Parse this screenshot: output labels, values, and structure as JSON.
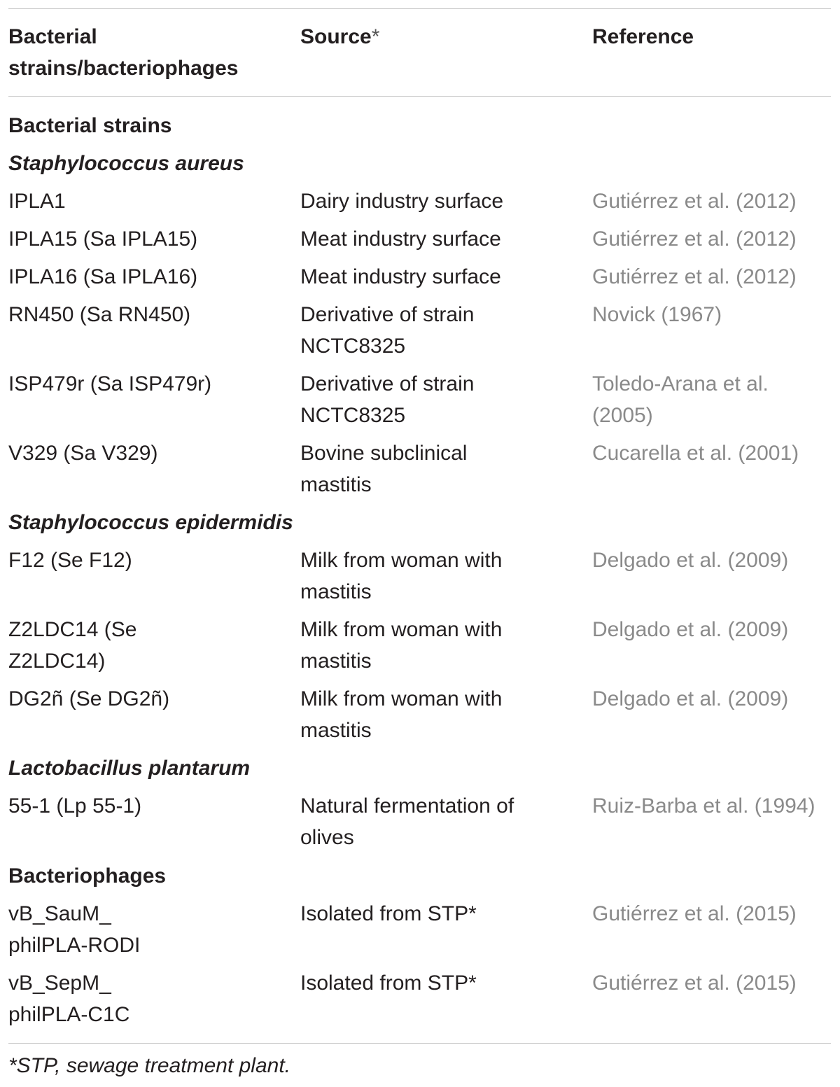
{
  "table": {
    "headers": {
      "col1_line1": "Bacterial",
      "col1_line2": "strains/bacteriophages",
      "col2": "Source",
      "col2_mark": "*",
      "col3": "Reference"
    },
    "sections": {
      "bacterial_strains": "Bacterial strains",
      "s_aureus": "Staphylococcus aureus",
      "s_epidermidis": "Staphylococcus epidermidis",
      "l_plantarum": "Lactobacillus plantarum",
      "bacteriophages": "Bacteriophages"
    },
    "rows": [
      {
        "strain": [
          "IPLA1"
        ],
        "source": [
          "Dairy industry surface"
        ],
        "reference": [
          "Gutiérrez et al. (2012)"
        ]
      },
      {
        "strain": [
          "IPLA15 (Sa IPLA15)"
        ],
        "source": [
          "Meat industry surface"
        ],
        "reference": [
          "Gutiérrez et al. (2012)"
        ]
      },
      {
        "strain": [
          "IPLA16 (Sa IPLA16)"
        ],
        "source": [
          "Meat industry surface"
        ],
        "reference": [
          "Gutiérrez et al. (2012)"
        ]
      },
      {
        "strain": [
          "RN450 (Sa RN450)"
        ],
        "source": [
          "Derivative of strain",
          "NCTC8325"
        ],
        "reference": [
          "Novick (1967)"
        ]
      },
      {
        "strain": [
          "ISP479r (Sa ISP479r)"
        ],
        "source": [
          "Derivative of strain",
          "NCTC8325"
        ],
        "reference": [
          "Toledo-Arana et al.",
          "(2005)"
        ]
      },
      {
        "strain": [
          "V329 (Sa V329)"
        ],
        "source": [
          "Bovine subclinical",
          "mastitis"
        ],
        "reference": [
          "Cucarella et al. (2001)"
        ]
      },
      {
        "strain": [
          "F12 (Se F12)"
        ],
        "source": [
          "Milk from woman with",
          "mastitis"
        ],
        "reference": [
          "Delgado et al. (2009)"
        ]
      },
      {
        "strain": [
          "Z2LDC14 (Se",
          "Z2LDC14)"
        ],
        "source": [
          "Milk from woman with",
          "mastitis"
        ],
        "reference": [
          "Delgado et al. (2009)"
        ]
      },
      {
        "strain": [
          "DG2ñ (Se DG2ñ)"
        ],
        "source": [
          "Milk from woman with",
          "mastitis"
        ],
        "reference": [
          "Delgado et al. (2009)"
        ]
      },
      {
        "strain": [
          "55-1 (Lp 55-1)"
        ],
        "source": [
          "Natural fermentation of",
          "olives"
        ],
        "reference": [
          "Ruiz-Barba et al. (1994)"
        ]
      },
      {
        "strain": [
          "vB_SauM_",
          "philPLA-RODI"
        ],
        "source": [
          "Isolated from STP*"
        ],
        "reference": [
          "Gutiérrez et al. (2015)"
        ]
      },
      {
        "strain": [
          "vB_SepM_",
          "philPLA-C1C"
        ],
        "source": [
          "Isolated from STP*"
        ],
        "reference": [
          "Gutiérrez et al. (2015)"
        ]
      }
    ],
    "footnote": "*STP, sewage treatment plant."
  }
}
